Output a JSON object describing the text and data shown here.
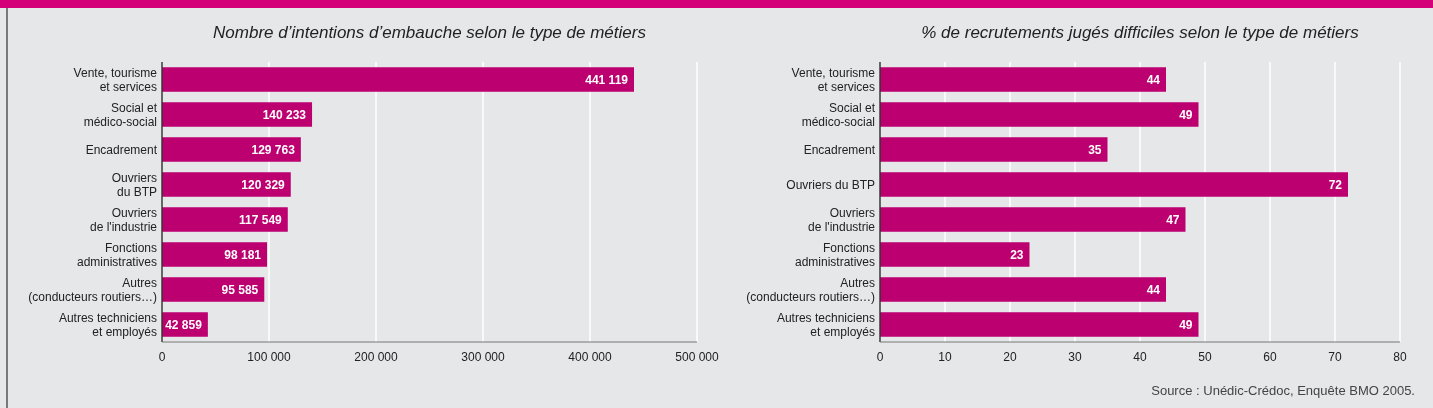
{
  "chart_data": [
    {
      "type": "bar",
      "orientation": "horizontal",
      "title": "Nombre d’intentions d’embauche selon le type de métiers",
      "categories": [
        "Vente, tourisme\net services",
        "Social et\nmédico-social",
        "Encadrement",
        "Ouvriers\ndu BTP",
        "Ouvriers\nde l'industrie",
        "Fonctions\nadministratives",
        "Autres\n(conducteurs routiers…)",
        "Autres techniciens\net employés"
      ],
      "values": [
        441119,
        140233,
        129763,
        120329,
        117549,
        98181,
        95585,
        42859
      ],
      "value_labels": [
        "441 119",
        "140 233",
        "129 763",
        "120 329",
        "117 549",
        "98 181",
        "95 585",
        "42 859"
      ],
      "color": "#bc0070",
      "xlim": [
        0,
        500000
      ],
      "xticks": [
        0,
        {
          "value": 100000,
          "label": "100 000"
        },
        {
          "value": 200000,
          "label": "200 000"
        },
        {
          "value": 300000,
          "label": "300 000"
        },
        {
          "value": 400000,
          "label": "400 000"
        },
        {
          "value": 500000,
          "label": "500 000"
        }
      ],
      "grid": "x"
    },
    {
      "type": "bar",
      "orientation": "horizontal",
      "title": "% de recrutements jugés difficiles selon le type de métiers",
      "categories": [
        "Vente, tourisme\net services",
        "Social et\nmédico-social",
        "Encadrement",
        "Ouvriers du BTP",
        "Ouvriers\nde l'industrie",
        "Fonctions\nadministratives",
        "Autres\n(conducteurs routiers…)",
        "Autres techniciens\net employés"
      ],
      "values": [
        44,
        49,
        35,
        72,
        47,
        23,
        44,
        49
      ],
      "data_labels": true,
      "color": "#bc0070",
      "xlim": [
        0,
        80
      ],
      "xticks": [
        0,
        10,
        20,
        30,
        40,
        50,
        60,
        70,
        80
      ],
      "grid": "x",
      "annotations": [
        "Source : Unédic-Crédoc, Enquête BMO 2005."
      ]
    }
  ]
}
